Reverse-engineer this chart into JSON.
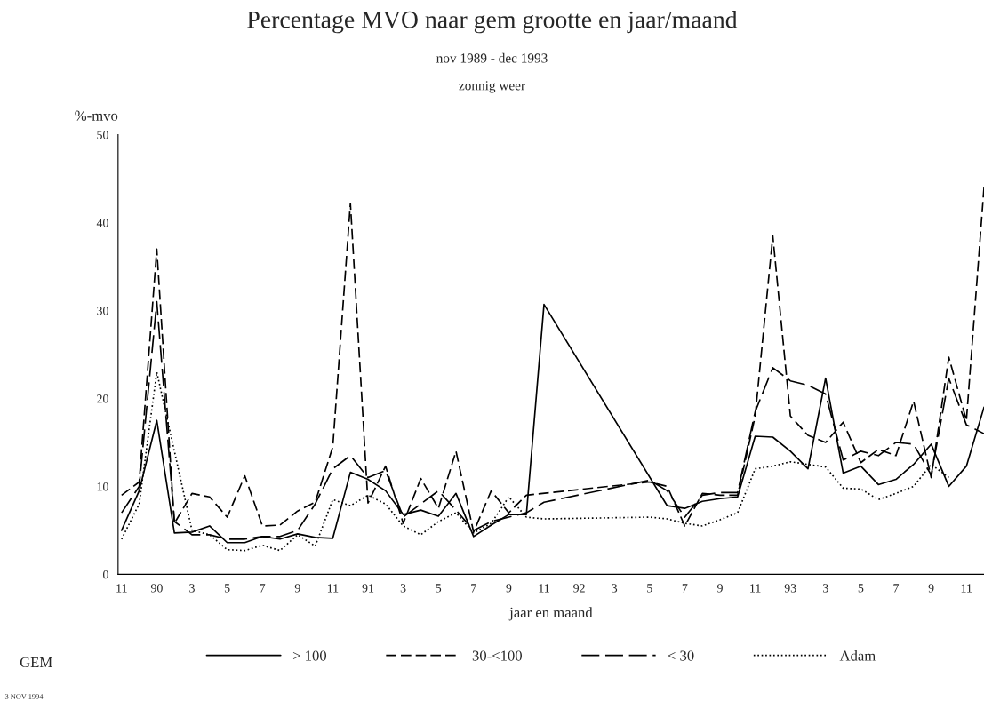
{
  "chart_data": {
    "type": "line",
    "title": "Percentage MVO naar gem grootte en jaar/maand",
    "subtitle": "nov 1989 - dec 1993\nzonnig weer",
    "xlabel": "jaar en maand",
    "ylabel": "%-mvo",
    "legend_title": "GEM",
    "legend": "bottom",
    "grid": false,
    "annotations": [
      "3 NOV 1994"
    ],
    "categories": [
      "11",
      null,
      "90",
      null,
      "3",
      null,
      "5",
      null,
      "7",
      null,
      "9",
      null,
      "11",
      null,
      "91",
      null,
      "3",
      null,
      "5",
      null,
      "7",
      null,
      "9",
      null,
      "11",
      null,
      "92",
      null,
      "3",
      null,
      "5",
      null,
      "7",
      null,
      "9",
      null,
      "11",
      null,
      "93",
      null,
      "3",
      null,
      "5",
      null,
      "7",
      null,
      "9",
      null,
      "11",
      null
    ],
    "ylim": [
      0,
      50
    ],
    "yticks": [
      0,
      10,
      20,
      30,
      40,
      50
    ],
    "series": [
      {
        "name": "> 100",
        "color": "#000000",
        "line_style": "solid",
        "values": [
          5,
          9.5,
          17.5,
          4.7,
          4.8,
          5.5,
          3.6,
          3.6,
          4.3,
          4.0,
          4.6,
          4.2,
          4.1,
          11.6,
          10.8,
          9.5,
          6.8,
          7.3,
          6.6,
          9.2,
          4.3,
          5.6,
          6.8,
          6.8,
          30.7,
          null,
          null,
          null,
          null,
          null,
          null,
          7.8,
          7.5,
          8.3,
          8.6,
          8.8,
          15.7,
          15.6,
          14,
          12,
          22.3,
          11.5,
          12.3,
          10.2,
          10.8,
          12.5,
          14.8,
          10,
          12.3,
          19
        ]
      },
      {
        "name": "30-<100",
        "color": "#000000",
        "line_style": "dashed",
        "values": [
          9,
          10.5,
          37,
          5.8,
          9.2,
          8.8,
          6.5,
          11.2,
          5.5,
          5.6,
          7.2,
          8.2,
          14.5,
          42.2,
          8.1,
          12.3,
          5.8,
          10.9,
          7.5,
          14,
          4.8,
          9.5,
          7,
          9,
          null,
          null,
          null,
          null,
          null,
          null,
          10.5,
          10,
          5.5,
          9.2,
          9,
          9,
          18,
          38.5,
          18,
          15.8,
          15,
          17.3,
          12.7,
          14.2,
          13.5,
          19.7,
          11,
          24.7,
          17.5,
          44
        ]
      },
      {
        "name": "< 30",
        "color": "#000000",
        "line_style": "longdash",
        "values": [
          7,
          10,
          31,
          6,
          4.5,
          4.5,
          4,
          4,
          4.3,
          4.3,
          5,
          8,
          12,
          13.5,
          11,
          11.8,
          6.5,
          8,
          9.5,
          7.3,
          5,
          6,
          6.5,
          7,
          8.2,
          null,
          null,
          null,
          null,
          null,
          10.7,
          9.5,
          6.5,
          9,
          9.3,
          9.3,
          18.5,
          23.5,
          22,
          21.5,
          20.5,
          13,
          14,
          13.5,
          15,
          14.8,
          11.3,
          22.3,
          17,
          16
        ]
      },
      {
        "name": "Adam",
        "color": "#000000",
        "line_style": "dotted",
        "values": [
          4,
          8,
          23,
          14,
          5,
          4.5,
          2.8,
          2.7,
          3.3,
          2.7,
          4.5,
          3.2,
          8.5,
          7.8,
          9,
          8,
          5.5,
          4.5,
          6,
          7,
          4.7,
          5.8,
          8.8,
          6.5,
          6.3,
          null,
          null,
          null,
          null,
          null,
          6.5,
          6.3,
          5.8,
          5.5,
          6.2,
          7,
          12,
          12.3,
          12.8,
          12.5,
          12.2,
          9.8,
          9.7,
          8.5,
          9.2,
          10,
          12.5,
          11,
          null,
          null
        ]
      }
    ]
  }
}
